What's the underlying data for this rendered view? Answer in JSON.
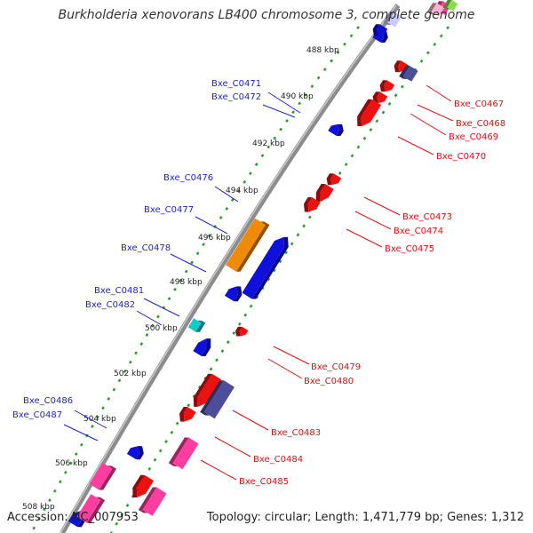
{
  "title": "Burkholderia xenovorans LB400 chromosome 3, complete genome",
  "accession": "Accession: NC_007953",
  "summary": "Topology: circular; Length: 1,471,779 bp; Genes: 1,312",
  "colors": {
    "backbone": "#8c8c8c",
    "tick": "#2e9a2e",
    "forward_gene": "#1010dd",
    "reverse_gene": "#ee1111",
    "forward_label": "#1f1fcc",
    "reverse_label": "#dd1111",
    "kbp_label": "#222222"
  },
  "kbp_markers": [
    {
      "label": "488 kbp"
    },
    {
      "label": "490 kbp"
    },
    {
      "label": "492 kbp"
    },
    {
      "label": "494 kbp"
    },
    {
      "label": "496 kbp"
    },
    {
      "label": "498 kbp"
    },
    {
      "label": "500 kbp"
    },
    {
      "label": "502 kbp"
    },
    {
      "label": "504 kbp"
    },
    {
      "label": "506 kbp"
    },
    {
      "label": "508 kbp"
    }
  ],
  "gene_labels_forward": [
    {
      "name": "Bxe_C0471"
    },
    {
      "name": "Bxe_C0472"
    },
    {
      "name": "Bxe_C0476"
    },
    {
      "name": "Bxe_C0477"
    },
    {
      "name": "Bxe_C0478"
    },
    {
      "name": "Bxe_C0481"
    },
    {
      "name": "Bxe_C0482"
    },
    {
      "name": "Bxe_C0486"
    },
    {
      "name": "Bxe_C0487"
    }
  ],
  "gene_labels_reverse": [
    {
      "name": "Bxe_C0467"
    },
    {
      "name": "Bxe_C0468"
    },
    {
      "name": "Bxe_C0469"
    },
    {
      "name": "Bxe_C0470"
    },
    {
      "name": "Bxe_C0473"
    },
    {
      "name": "Bxe_C0474"
    },
    {
      "name": "Bxe_C0475"
    },
    {
      "name": "Bxe_C0479"
    },
    {
      "name": "Bxe_C0480"
    },
    {
      "name": "Bxe_C0483"
    },
    {
      "name": "Bxe_C0484"
    },
    {
      "name": "Bxe_C0485"
    }
  ]
}
